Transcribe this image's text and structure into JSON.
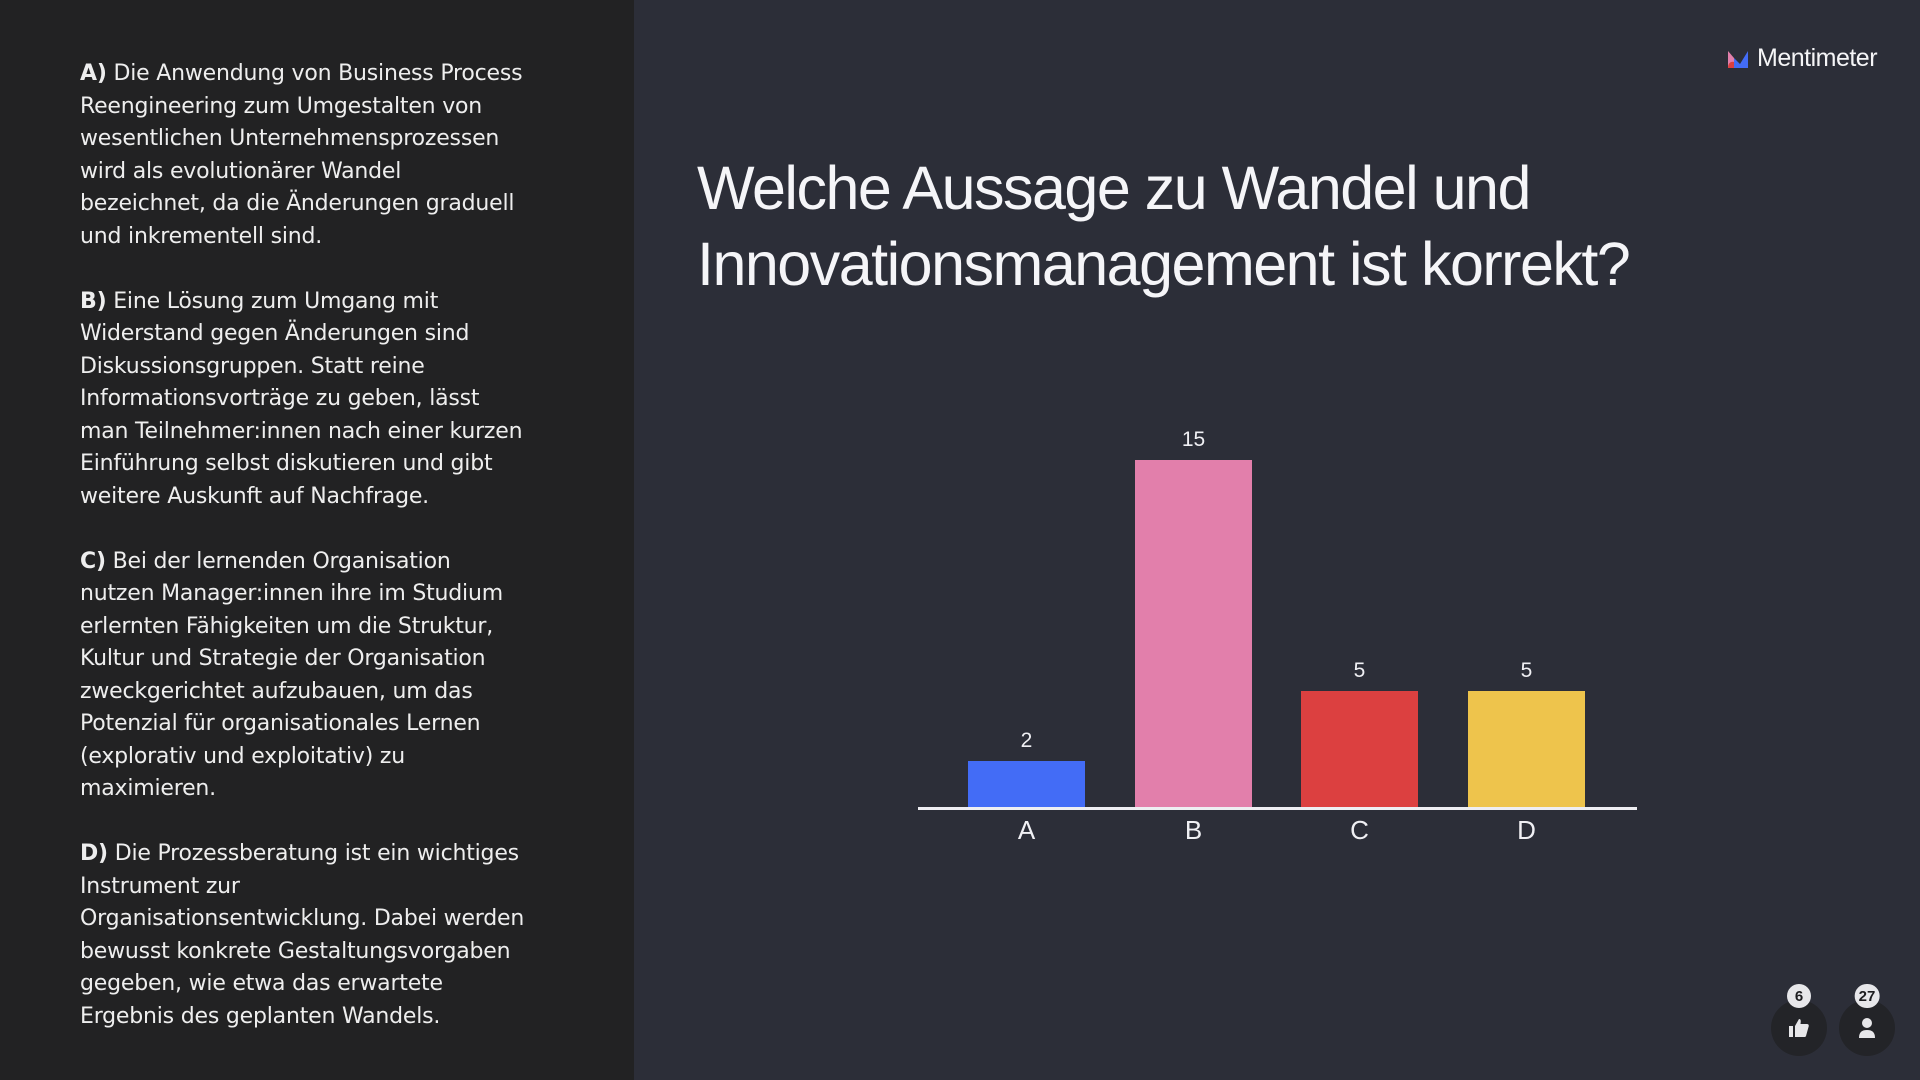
{
  "statements": [
    {
      "letter": "A)",
      "text": " Die Anwendung von Business Process\nReengineering zum Umgestalten von\nwesentlichen Unternehmensprozessen\nwird als evolutionärer Wandel\nbezeichnet, da die Änderungen graduell\nund inkrementell sind."
    },
    {
      "letter": "B)",
      "text": " Eine Lösung zum Umgang mit\nWiderstand gegen Änderungen sind\nDiskussionsgruppen. Statt reine\nInformationsvorträge zu geben, lässt\nman Teilnehmer:innen nach einer kurzen\nEinführung selbst diskutieren und gibt\nweitere Auskunft auf Nachfrage."
    },
    {
      "letter": "C)",
      "text": " Bei der lernenden Organisation\nnutzen Manager:innen ihre im Studium\nerlernten Fähigkeiten um die Struktur,\nKultur und Strategie der Organisation\nzweckgerichtet aufzubauen, um das\nPotenzial für organisationales Lernen\n(explorativ und exploitativ) zu\nmaximieren."
    },
    {
      "letter": "D)",
      "text": " Die Prozessberatung ist ein wichtiges\nInstrument zur\nOrganisationsentwicklung. Dabei werden\nbewusst konkrete Gestaltungsvorgaben\ngegeben, wie etwa das erwartete\nErgebnis des geplanten Wandels."
    }
  ],
  "brand": {
    "name": "Mentimeter"
  },
  "question": "Welche Aussage zu Wandel und Innovationsmanagement ist korrekt?",
  "footer": {
    "reactions_count": "6",
    "reactions_icon": "thumbs-up-icon",
    "participants_count": "27",
    "participants_icon": "person-icon"
  },
  "colors": {
    "A": "#436cf6",
    "B": "#e27fab",
    "C": "#dc4040",
    "D": "#eec44c"
  },
  "chart_data": {
    "type": "bar",
    "title": "Welche Aussage zu Wandel und Innovationsmanagement ist korrekt?",
    "categories": [
      "A",
      "B",
      "C",
      "D"
    ],
    "values": [
      2,
      15,
      5,
      5
    ],
    "colors": [
      "#436cf6",
      "#e27fab",
      "#dc4040",
      "#eec44c"
    ],
    "value_labels": [
      "2",
      "15",
      "5",
      "5"
    ],
    "xlabel": "",
    "ylabel": "",
    "ylim": [
      0,
      15
    ],
    "grid": false,
    "legend": "none"
  }
}
